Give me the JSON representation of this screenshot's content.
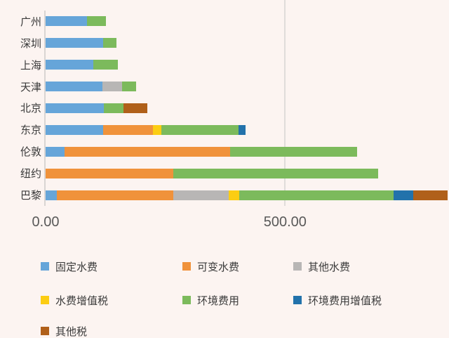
{
  "page": {
    "background": "#fcf4f1",
    "axis_line_color": "#d9d5d3",
    "gridline_color": "#e0dcda",
    "tick_label_color": "#595959",
    "text_color": "#3a3a3a"
  },
  "chart_data": {
    "type": "bar",
    "orientation": "horizontal",
    "stacked": true,
    "title": "",
    "xlabel": "",
    "ylabel": "",
    "categories": [
      "广州",
      "深圳",
      "上海",
      "天津",
      "北京",
      "东京",
      "伦敦",
      "纽约",
      "巴黎"
    ],
    "series": [
      {
        "name": "固定水费",
        "color": "#66a5d9",
        "values": [
          87,
          120,
          99,
          119,
          122,
          120,
          40,
          0,
          23
        ]
      },
      {
        "name": "可变水费",
        "color": "#f0923b",
        "values": [
          0,
          0,
          0,
          0,
          0,
          104,
          346,
          267,
          244
        ]
      },
      {
        "name": "其他水费",
        "color": "#b8b6b5",
        "values": [
          0,
          0,
          0,
          41,
          0,
          0,
          0,
          0,
          115
        ]
      },
      {
        "name": "水费增值税",
        "color": "#fccd13",
        "values": [
          0,
          0,
          0,
          0,
          0,
          18,
          0,
          0,
          22
        ]
      },
      {
        "name": "环境费用",
        "color": "#7cba5c",
        "values": [
          39,
          28,
          52,
          29,
          41,
          161,
          264,
          428,
          323
        ]
      },
      {
        "name": "环境费用增值税",
        "color": "#2272ab",
        "values": [
          0,
          0,
          0,
          0,
          0,
          15,
          0,
          0,
          41
        ]
      },
      {
        "name": "其他税",
        "color": "#b0601a",
        "values": [
          0,
          0,
          0,
          0,
          50,
          0,
          0,
          0,
          71
        ]
      }
    ],
    "x_ticks": [
      {
        "value": 0,
        "label": "0.00"
      },
      {
        "value": 500,
        "label": "500.00"
      }
    ],
    "xlim": [
      0,
      843
    ],
    "grid": "vertical-at-ticks",
    "legend_position": "bottom"
  }
}
